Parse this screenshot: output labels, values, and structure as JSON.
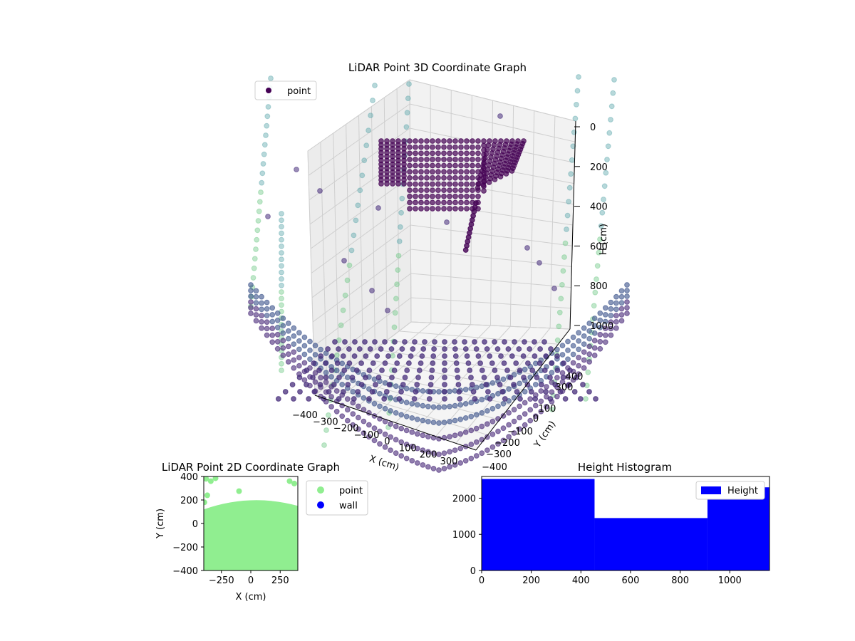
{
  "chart_data": [
    {
      "type": "scatter3d",
      "title": "LiDAR Point 3D Coordinate Graph",
      "xlabel": "X (cm)",
      "ylabel": "Y (cm)",
      "zlabel": "H (cm)",
      "legend": {
        "entries": [
          "point"
        ],
        "placement": "top-left"
      },
      "xticks": [
        -400,
        -300,
        -200,
        -100,
        0,
        100,
        200,
        300
      ],
      "yticks": [
        -400,
        -300,
        -200,
        -100,
        0,
        100,
        300,
        400
      ],
      "zticks": [
        0,
        200,
        400,
        600,
        800,
        1000
      ],
      "zlim": [
        0,
        1000
      ],
      "zaxis_inverted": true,
      "grid": true,
      "colors": {
        "point_dark": "#440154",
        "point_mid": "#3b528b",
        "point_light": "#5ec962"
      }
    },
    {
      "type": "scatter",
      "title": "LiDAR Point 2D Coordinate Graph",
      "xlabel": "X (cm)",
      "ylabel": "Y (cm)",
      "xlim": [
        -400,
        400
      ],
      "ylim": [
        -400,
        400
      ],
      "xticks": [
        -250,
        0,
        250
      ],
      "yticks": [
        -400,
        -200,
        0,
        200,
        400
      ],
      "legend": {
        "entries": [
          "point",
          "wall"
        ],
        "placement": "outside-right"
      },
      "series": [
        {
          "name": "point",
          "color": "#90ee90"
        },
        {
          "name": "wall",
          "color": "#0000ff"
        }
      ]
    },
    {
      "type": "bar",
      "title": "Height Histogram",
      "xlim": [
        0,
        1160
      ],
      "ylim": [
        0,
        2600
      ],
      "xticks": [
        0,
        200,
        400,
        600,
        800,
        1000
      ],
      "yticks": [
        0,
        1000,
        2000
      ],
      "legend": {
        "entries": [
          "Height"
        ],
        "placement": "top-right"
      },
      "bins": [
        {
          "x0": 0,
          "x1": 455,
          "value": 2530
        },
        {
          "x0": 455,
          "x1": 910,
          "value": 1450
        },
        {
          "x0": 910,
          "x1": 1160,
          "value": 2300
        }
      ],
      "color": "#0000ff"
    }
  ]
}
